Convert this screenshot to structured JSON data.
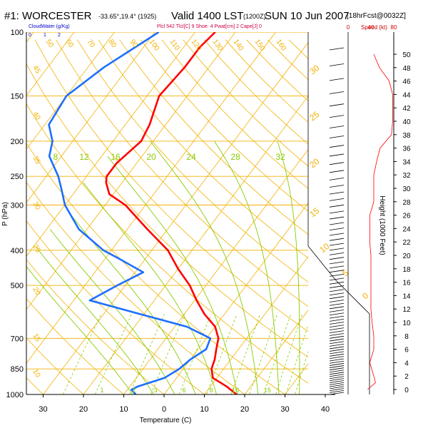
{
  "header": {
    "station": "#1: WORCESTER",
    "coords": "-33.65°,19.4° (1925)",
    "valid_label": "Valid 1400 LST",
    "utc": "(1200Z)",
    "date": "SUN 10 Jun 2007",
    "forecast": "[18hrFcst@0032Z]"
  },
  "subheader": {
    "cloud_water": "CloudWater (g/Kg)",
    "cloud_ticks": [
      "0",
      "1",
      "2"
    ],
    "indices": "Plcl 542 Tlcl[C] 9 Shoe: 4 Pwat[cm] 2 Cape[J] 0",
    "speed_label": "Speed (kt)",
    "speed_ticks": [
      "0",
      "40",
      "80"
    ]
  },
  "colors": {
    "temperature": "#ff0000",
    "dewpoint": "#1e6fff",
    "isobar": "#f2b100",
    "isotherm": "#f2b100",
    "dry_adiabat": "#f2b100",
    "moist_adiabat": "#88cc00",
    "mixing_ratio": "#88cc00",
    "wind": "#000000"
  },
  "chart_data": {
    "type": "line",
    "chart_kind": "skew-T log-P sounding",
    "xlabel": "Temperature (C)",
    "ylabel": "P (hPa)",
    "right_ylabel": "Height (1000 Feet)",
    "x_ticks": [
      -30,
      -20,
      -10,
      0,
      10,
      20,
      30,
      40
    ],
    "x_tick_labels": [
      "30",
      "20",
      "10",
      "0",
      "10",
      "20",
      "30",
      "40"
    ],
    "xlim": [
      -35,
      50
    ],
    "pressure_ticks": [
      100,
      150,
      200,
      250,
      300,
      400,
      500,
      700,
      850,
      1000
    ],
    "ylim_hpa": [
      1000,
      100
    ],
    "height_ticks_kft": [
      0,
      2,
      4,
      6,
      8,
      10,
      12,
      14,
      16,
      18,
      20,
      22,
      24,
      26,
      28,
      30,
      32,
      34,
      36,
      38,
      40,
      42,
      44,
      46,
      48,
      50
    ],
    "series": [
      {
        "name": "temperature",
        "pressure": [
          1000,
          950,
          900,
          850,
          800,
          750,
          700,
          650,
          600,
          550,
          500,
          450,
          400,
          350,
          300,
          280,
          260,
          250,
          230,
          200,
          180,
          150,
          125,
          110,
          100
        ],
        "temperature": [
          18,
          14,
          9,
          7,
          6,
          4.5,
          3,
          0,
          -5,
          -9.5,
          -14,
          -20,
          -26,
          -35,
          -45,
          -51,
          -54,
          -55,
          -55,
          -53,
          -54,
          -57,
          -56,
          -56,
          -55
        ]
      },
      {
        "name": "dewpoint",
        "pressure": [
          1000,
          970,
          950,
          900,
          850,
          800,
          750,
          700,
          650,
          600,
          550,
          500,
          460,
          420,
          400,
          350,
          300,
          270,
          250,
          220,
          200,
          180,
          150,
          125,
          110,
          100
        ],
        "dewpoint": [
          -7,
          -9,
          -8,
          -3,
          -1,
          0,
          2,
          1,
          -7,
          -21,
          -36,
          -32,
          -28,
          -37,
          -42,
          -52,
          -60,
          -64,
          -67,
          -73,
          -75,
          -79,
          -80,
          -76,
          -72,
          -69
        ]
      }
    ],
    "isotherm_labels": [
      "50",
      "60",
      "70",
      "80",
      "90",
      "100",
      "110",
      "120",
      "130",
      "140",
      "150",
      "160"
    ],
    "dry_adiabat_labels": [
      "45",
      "40",
      "35",
      "30",
      "25",
      "20",
      "15",
      "10",
      "5",
      "0",
      "5",
      "10",
      "15",
      "20",
      "25",
      "30",
      "35"
    ],
    "mixing_ratio_labels": [
      "8",
      "12",
      "16",
      "20",
      "24",
      "28",
      "32"
    ],
    "moist_adiabat_labels": [
      "1",
      "2",
      "3",
      "6",
      "8",
      "10",
      "15"
    ],
    "wind_speed_kt": {
      "height_kft": [
        0,
        1,
        2,
        4,
        6,
        8,
        10,
        12,
        14,
        16,
        18,
        20,
        22,
        24,
        26,
        28,
        30,
        32,
        34,
        36,
        38,
        40,
        42,
        44,
        46,
        48,
        50
      ],
      "speed": [
        34,
        48,
        45,
        38,
        45,
        45,
        42,
        40,
        40,
        40,
        40,
        40,
        38,
        38,
        38,
        45,
        45,
        45,
        50,
        56,
        76,
        78,
        78,
        78,
        72,
        55,
        45
      ]
    }
  },
  "axes_text": {
    "xlabel": "Temperature (C)",
    "ylabel": "P (hPa)",
    "right_ylabel": "Height (1000 Feet)"
  }
}
